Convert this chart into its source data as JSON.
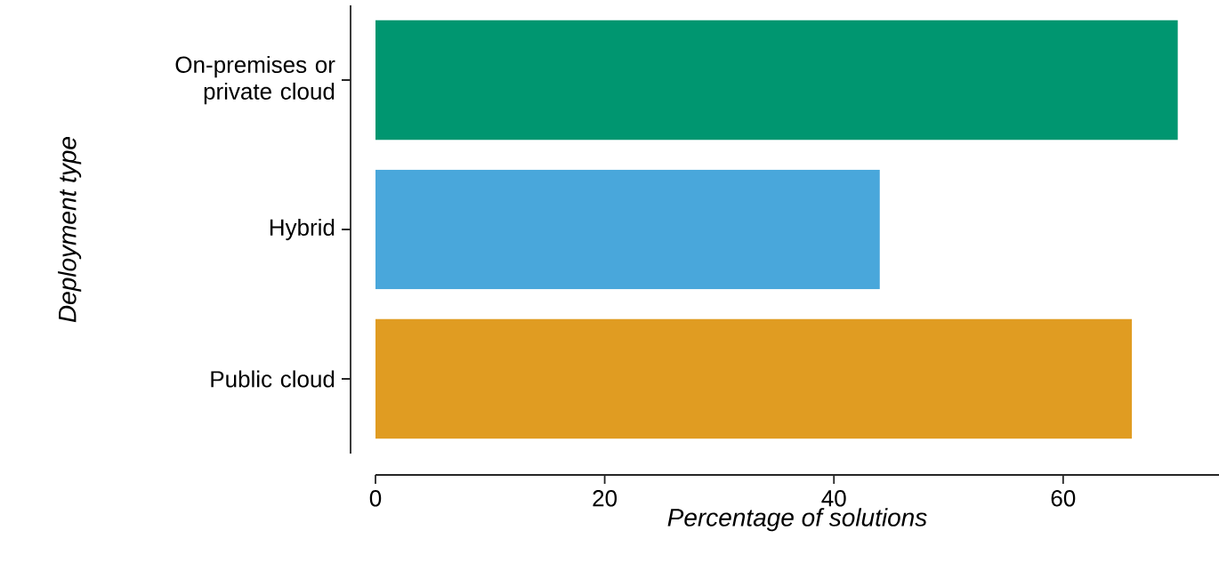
{
  "chart_data": {
    "type": "bar",
    "orientation": "horizontal",
    "categories": [
      "On-premises or private cloud",
      "Hybrid",
      "Public cloud"
    ],
    "values": [
      70,
      44,
      66
    ],
    "colors": [
      "#009670",
      "#49a7db",
      "#e09c22"
    ],
    "xlim": [
      0,
      73.6
    ],
    "xticks": [
      0,
      20,
      40,
      60
    ],
    "xlabel": "Percentage of solutions",
    "ylabel": "Deployment type"
  }
}
